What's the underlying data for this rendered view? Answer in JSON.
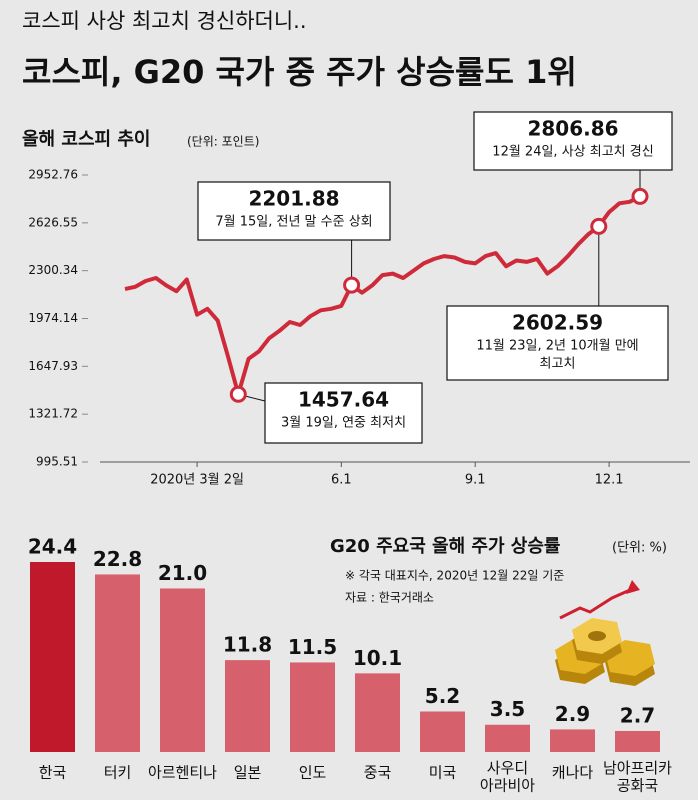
{
  "header": {
    "kicker": "코스피 사상 최고치 경신하더니..",
    "title": "코스피, G20 국가 중 주가 상승률도 1위"
  },
  "chart_data": [
    {
      "type": "line",
      "title": "올해 코스피 추이",
      "unit": "(단위: 포인트)",
      "color": "#cf2a3a",
      "categories": [
        null,
        null,
        null,
        null,
        null,
        null,
        null,
        "2020년 3월 2일",
        null,
        null,
        null,
        null,
        null,
        null,
        null,
        null,
        null,
        null,
        null,
        null,
        null,
        "6.1",
        null,
        null,
        null,
        null,
        null,
        null,
        null,
        null,
        null,
        null,
        null,
        null,
        "9.1",
        null,
        null,
        null,
        null,
        null,
        null,
        null,
        null,
        null,
        null,
        null,
        null,
        "12.1",
        null,
        null,
        null
      ],
      "values": [
        2175,
        2190,
        2230,
        2250,
        2200,
        2160,
        2240,
        2000,
        2040,
        1960,
        1715,
        1457.64,
        1700,
        1750,
        1840,
        1890,
        1950,
        1930,
        1990,
        2030,
        2040,
        2060,
        2201.88,
        2150,
        2200,
        2270,
        2280,
        2250,
        2300,
        2350,
        2380,
        2400,
        2390,
        2360,
        2350,
        2400,
        2420,
        2330,
        2370,
        2360,
        2380,
        2280,
        2330,
        2400,
        2480,
        2550,
        2602.59,
        2700,
        2760,
        2770,
        2806.86
      ],
      "ylim": [
        995.51,
        2952.76
      ],
      "yticks": [
        995.51,
        1321.72,
        1647.93,
        1974.14,
        2300.34,
        2626.55,
        2952.76
      ],
      "annotations": [
        {
          "lines": [
            "12월 24일, 사상 최고치 경신"
          ]
        },
        {
          "lines": [
            "7월 15일, 전년 말 수준 상회"
          ]
        },
        {
          "lines": [
            "11월 23일, 2년 10개월 만에",
            "최고치"
          ]
        },
        {
          "lines": [
            "3월 19일, 연중 최저치"
          ]
        }
      ]
    },
    {
      "type": "bar",
      "title": "G20 주요국 올해 주가 상승률",
      "unit": "(단위: %)",
      "notes": [
        "※ 각국 대표지수, 2020년 12월 22일 기준",
        "자료 : 한국거래소"
      ],
      "categories": [
        "한국",
        "터키",
        "아르헨티나",
        "일본",
        "인도",
        "중국",
        "미국",
        "사우디\n아라비아",
        "캐나다",
        "남아프리카\n공화국"
      ],
      "values": [
        24.4,
        22.8,
        21.0,
        11.8,
        11.5,
        10.1,
        5.2,
        3.5,
        2.9,
        2.7
      ],
      "value_labels": [
        "24.4",
        "22.8",
        "21.0",
        "11.8",
        "11.5",
        "10.1",
        "5.2",
        "3.5",
        "2.9",
        "2.7"
      ],
      "colors": [
        "#c0192c",
        "#d6606b",
        "#d6606b",
        "#d6606b",
        "#d6606b",
        "#d6606b",
        "#d6606b",
        "#d6606b",
        "#d6606b",
        "#d6606b"
      ]
    }
  ]
}
